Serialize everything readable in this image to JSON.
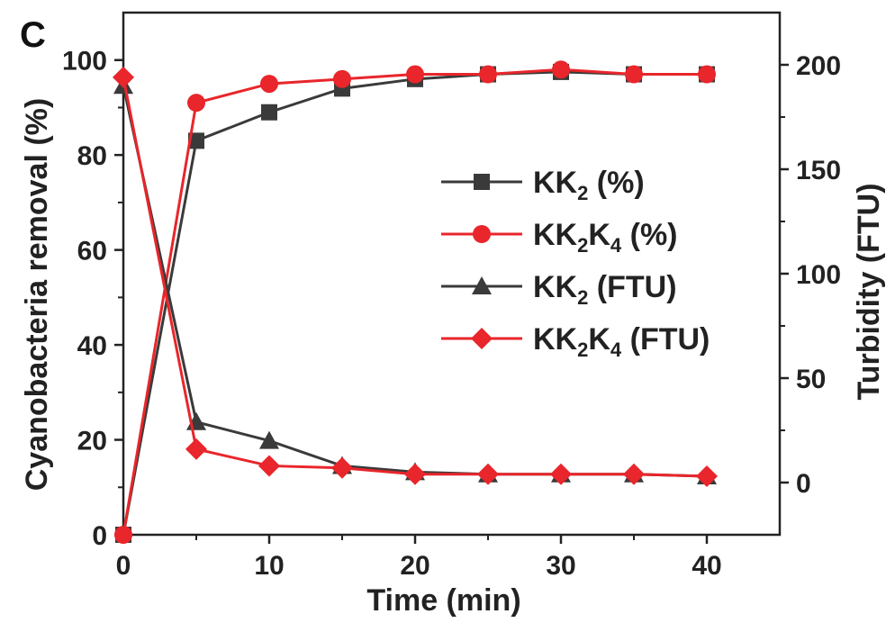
{
  "panel_label": "C",
  "chart_data": {
    "type": "line",
    "xlabel": "Time (min)",
    "ylabel": "Cyanobacteria removal (%)",
    "y2label": "Turbidity (FTU)",
    "xlim": [
      0,
      45
    ],
    "ylim": [
      0,
      110
    ],
    "y2lim": [
      -25,
      225
    ],
    "xticks": [
      0,
      10,
      20,
      30,
      40
    ],
    "yticks": [
      0,
      20,
      40,
      60,
      80,
      100
    ],
    "y2ticks": [
      0,
      50,
      100,
      150,
      200
    ],
    "grid": false,
    "legend_position": "center-right",
    "series": [
      {
        "name": "KK2 (%)",
        "legend": {
          "main": "KK",
          "sub1": "2",
          "rest": " (%)"
        },
        "axis": "left",
        "marker": "square",
        "color": "#3a3a3a",
        "x": [
          0,
          5,
          10,
          15,
          20,
          25,
          30,
          35,
          40
        ],
        "values": [
          0,
          83,
          89,
          94,
          96,
          97,
          97.5,
          97,
          97
        ]
      },
      {
        "name": "KK2K4 (%)",
        "legend": {
          "main": "KK",
          "sub1": "2",
          "mid": "K",
          "sub2": "4",
          "rest": " (%)"
        },
        "axis": "left",
        "marker": "circle",
        "color": "#e8262b",
        "x": [
          0,
          5,
          10,
          15,
          20,
          25,
          30,
          35,
          40
        ],
        "values": [
          0,
          91,
          95,
          96,
          97,
          97,
          98,
          97,
          97
        ]
      },
      {
        "name": "KK2 (FTU)",
        "legend": {
          "main": "KK",
          "sub1": "2",
          "rest": " (FTU)"
        },
        "axis": "right",
        "marker": "triangle",
        "color": "#3a3a3a",
        "x": [
          0,
          5,
          10,
          15,
          20,
          25,
          30,
          35,
          40
        ],
        "values": [
          190,
          29,
          20,
          8,
          5,
          4,
          4,
          4,
          3
        ]
      },
      {
        "name": "KK2K4 (FTU)",
        "legend": {
          "main": "KK",
          "sub1": "2",
          "mid": "K",
          "sub2": "4",
          "rest": " (FTU)"
        },
        "axis": "right",
        "marker": "diamond",
        "color": "#e8262b",
        "x": [
          0,
          5,
          10,
          15,
          20,
          25,
          30,
          35,
          40
        ],
        "values": [
          194,
          16,
          8,
          7,
          4,
          4,
          4,
          4,
          3
        ]
      }
    ]
  }
}
